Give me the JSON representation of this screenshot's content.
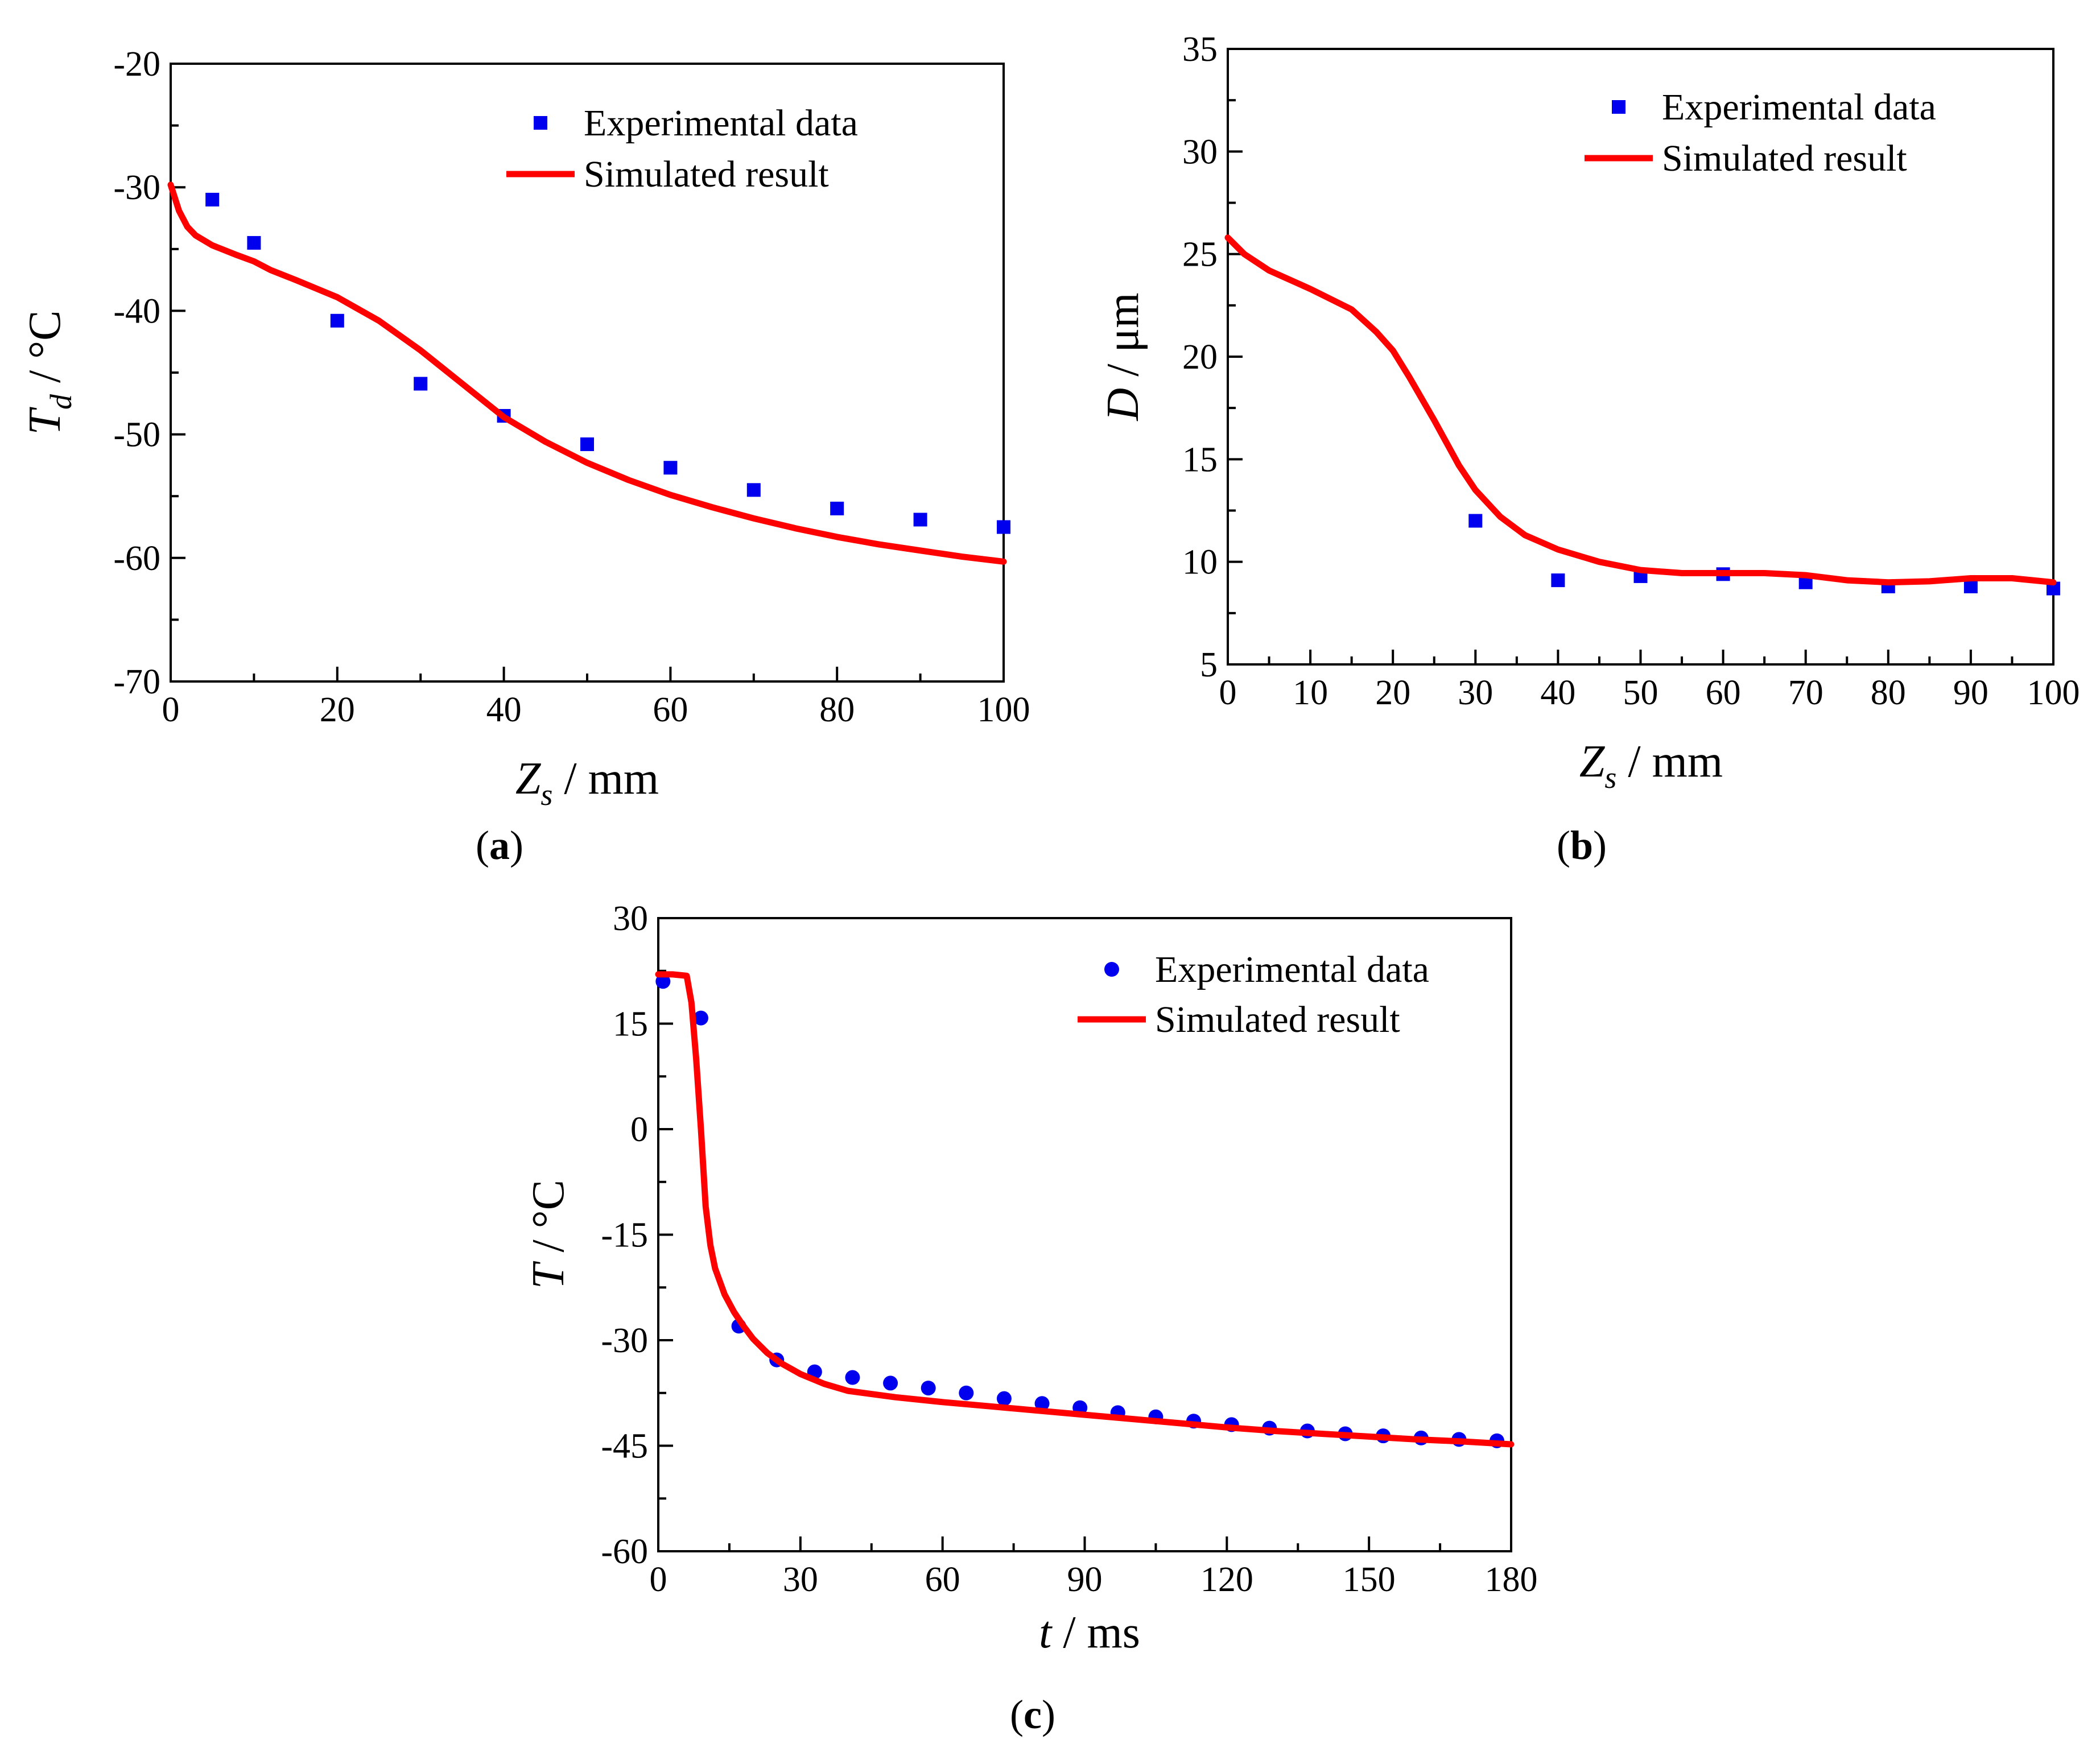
{
  "colors": {
    "experimental": "#0000ee",
    "simulated": "#ff0000",
    "axis": "#000000"
  },
  "chart_data": [
    {
      "id": "a",
      "type": "scatter",
      "panel_label": "(a)",
      "title": "",
      "xlabel": {
        "var": "Z",
        "sub": "s",
        "unit": " / mm"
      },
      "ylabel": {
        "var": "T",
        "sub": "d",
        "unit": " / °C"
      },
      "xlim": [
        0,
        100
      ],
      "ylim": [
        -70,
        -20
      ],
      "xticks": [
        0,
        20,
        40,
        60,
        80,
        100
      ],
      "yticks": [
        -70,
        -60,
        -50,
        -40,
        -30,
        -20
      ],
      "xminor": 10,
      "yminor": 5,
      "legend_position": "top-right",
      "series": [
        {
          "name": "Experimental data",
          "kind": "points",
          "marker": "square",
          "x": [
            5,
            10,
            20,
            30,
            40,
            50,
            60,
            70,
            80,
            90,
            100
          ],
          "y": [
            -31.0,
            -34.5,
            -40.8,
            -45.9,
            -48.5,
            -50.8,
            -52.7,
            -54.5,
            -56.0,
            -56.9,
            -57.5
          ]
        },
        {
          "name": "Simulated result",
          "kind": "line",
          "x": [
            0,
            1,
            2,
            3,
            5,
            8,
            10,
            12,
            15,
            20,
            25,
            30,
            35,
            40,
            45,
            50,
            55,
            60,
            65,
            70,
            75,
            80,
            85,
            90,
            95,
            100
          ],
          "y": [
            -29.8,
            -31.9,
            -33.2,
            -33.9,
            -34.7,
            -35.5,
            -36.0,
            -36.7,
            -37.5,
            -38.9,
            -40.8,
            -43.2,
            -45.9,
            -48.6,
            -50.6,
            -52.3,
            -53.7,
            -54.9,
            -55.9,
            -56.8,
            -57.6,
            -58.3,
            -58.9,
            -59.4,
            -59.9,
            -60.3
          ]
        }
      ]
    },
    {
      "id": "b",
      "type": "scatter",
      "panel_label": "(b)",
      "title": "",
      "xlabel": {
        "var": "Z",
        "sub": "s",
        "unit": " / mm"
      },
      "ylabel": {
        "var": "D",
        "sub": "",
        "unit": " / μm"
      },
      "xlim": [
        0,
        100
      ],
      "ylim": [
        5,
        35
      ],
      "xticks": [
        0,
        10,
        20,
        30,
        40,
        50,
        60,
        70,
        80,
        90,
        100
      ],
      "yticks": [
        5,
        10,
        15,
        20,
        25,
        30,
        35
      ],
      "xminor": 5,
      "yminor": 2.5,
      "legend_position": "top-right",
      "series": [
        {
          "name": "Experimental data",
          "kind": "points",
          "marker": "square",
          "x": [
            30,
            40,
            50,
            60,
            70,
            80,
            90,
            100
          ],
          "y": [
            12.0,
            9.1,
            9.3,
            9.4,
            9.0,
            8.8,
            8.8,
            8.7
          ]
        },
        {
          "name": "Simulated result",
          "kind": "line",
          "x": [
            0,
            2,
            5,
            10,
            15,
            18,
            20,
            22,
            25,
            28,
            30,
            33,
            36,
            40,
            45,
            50,
            55,
            60,
            65,
            70,
            75,
            80,
            85,
            90,
            95,
            100
          ],
          "y": [
            25.8,
            25.0,
            24.2,
            23.3,
            22.3,
            21.2,
            20.3,
            19.0,
            16.9,
            14.7,
            13.5,
            12.2,
            11.3,
            10.6,
            10.0,
            9.6,
            9.45,
            9.45,
            9.45,
            9.35,
            9.1,
            9.0,
            9.05,
            9.2,
            9.2,
            9.0
          ]
        }
      ]
    },
    {
      "id": "c",
      "type": "scatter",
      "panel_label": "(c)",
      "title": "",
      "xlabel": {
        "var": "t",
        "sub": "",
        "unit": " / ms"
      },
      "ylabel": {
        "var": "T",
        "sub": "",
        "unit": " / °C"
      },
      "xlim": [
        0,
        180
      ],
      "ylim": [
        -60,
        30
      ],
      "xticks": [
        0,
        30,
        60,
        90,
        120,
        150,
        180
      ],
      "yticks": [
        -60,
        -45,
        -30,
        -15,
        0,
        15,
        30
      ],
      "xminor": 15,
      "yminor": 7.5,
      "legend_position": "top-right",
      "series": [
        {
          "name": "Experimental data",
          "kind": "points",
          "marker": "circle",
          "x": [
            1,
            9,
            17,
            25,
            33,
            41,
            49,
            57,
            65,
            73,
            81,
            89,
            97,
            105,
            113,
            121,
            129,
            137,
            145,
            153,
            161,
            169,
            177
          ],
          "y": [
            21.0,
            15.8,
            -28.0,
            -32.8,
            -34.5,
            -35.3,
            -36.1,
            -36.8,
            -37.5,
            -38.3,
            -39.0,
            -39.6,
            -40.3,
            -40.9,
            -41.5,
            -42.0,
            -42.5,
            -42.9,
            -43.3,
            -43.6,
            -43.9,
            -44.1,
            -44.3
          ]
        },
        {
          "name": "Simulated result",
          "kind": "line",
          "x": [
            0,
            3,
            6,
            7,
            8,
            9,
            10,
            11,
            12,
            14,
            16,
            18,
            20,
            23,
            26,
            30,
            35,
            40,
            50,
            60,
            70,
            80,
            90,
            100,
            110,
            120,
            130,
            140,
            150,
            160,
            170,
            180
          ],
          "y": [
            22.0,
            22.0,
            21.8,
            18.0,
            10.0,
            0.0,
            -11.0,
            -16.5,
            -19.8,
            -23.5,
            -26.0,
            -28.0,
            -29.8,
            -31.8,
            -33.3,
            -34.8,
            -36.2,
            -37.2,
            -38.1,
            -38.8,
            -39.4,
            -40.0,
            -40.6,
            -41.2,
            -41.8,
            -42.4,
            -42.9,
            -43.3,
            -43.7,
            -44.1,
            -44.4,
            -44.8
          ]
        }
      ]
    }
  ]
}
